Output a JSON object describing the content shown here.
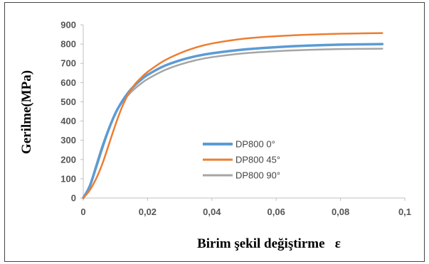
{
  "chart_data": {
    "type": "line",
    "ylabel": "Gerilme(MPa)",
    "xlabel": "Birim şekil değiştirme   ε",
    "xlim": [
      0,
      0.1
    ],
    "ylim": [
      0,
      900
    ],
    "x_ticks": [
      0,
      0.02,
      0.04,
      0.06,
      0.08,
      0.1
    ],
    "x_tick_labels": [
      "0",
      "0,02",
      "0,04",
      "0,06",
      "0,08",
      "0,1"
    ],
    "y_ticks": [
      0,
      100,
      200,
      300,
      400,
      500,
      600,
      700,
      800,
      900
    ],
    "y_tick_labels": [
      "0",
      "100",
      "200",
      "300",
      "400",
      "500",
      "600",
      "700",
      "800",
      "900"
    ],
    "grid": false,
    "legend_position": "center",
    "series": [
      {
        "name": "DP800 0°",
        "color": "#5b9bd5",
        "x": [
          0,
          0.002,
          0.004,
          0.006,
          0.008,
          0.01,
          0.012,
          0.014,
          0.016,
          0.018,
          0.02,
          0.025,
          0.03,
          0.035,
          0.04,
          0.05,
          0.06,
          0.07,
          0.08,
          0.093
        ],
        "y": [
          0,
          60,
          160,
          265,
          360,
          440,
          500,
          548,
          585,
          615,
          640,
          685,
          715,
          737,
          752,
          772,
          784,
          792,
          797,
          800
        ]
      },
      {
        "name": "DP800 45°",
        "color": "#ed7d31",
        "x": [
          0,
          0.002,
          0.004,
          0.006,
          0.008,
          0.01,
          0.012,
          0.014,
          0.016,
          0.018,
          0.02,
          0.025,
          0.03,
          0.035,
          0.04,
          0.05,
          0.06,
          0.07,
          0.08,
          0.093
        ],
        "y": [
          0,
          40,
          100,
          180,
          280,
          380,
          470,
          540,
          590,
          625,
          655,
          712,
          752,
          782,
          803,
          828,
          841,
          849,
          854,
          857
        ]
      },
      {
        "name": "DP800 90°",
        "color": "#a5a5a5",
        "x": [
          0,
          0.002,
          0.004,
          0.006,
          0.008,
          0.01,
          0.012,
          0.014,
          0.016,
          0.018,
          0.02,
          0.025,
          0.03,
          0.035,
          0.04,
          0.05,
          0.06,
          0.07,
          0.08,
          0.093
        ],
        "y": [
          0,
          65,
          170,
          275,
          365,
          440,
          495,
          535,
          568,
          595,
          618,
          662,
          693,
          716,
          732,
          752,
          763,
          770,
          774,
          776
        ]
      }
    ]
  }
}
